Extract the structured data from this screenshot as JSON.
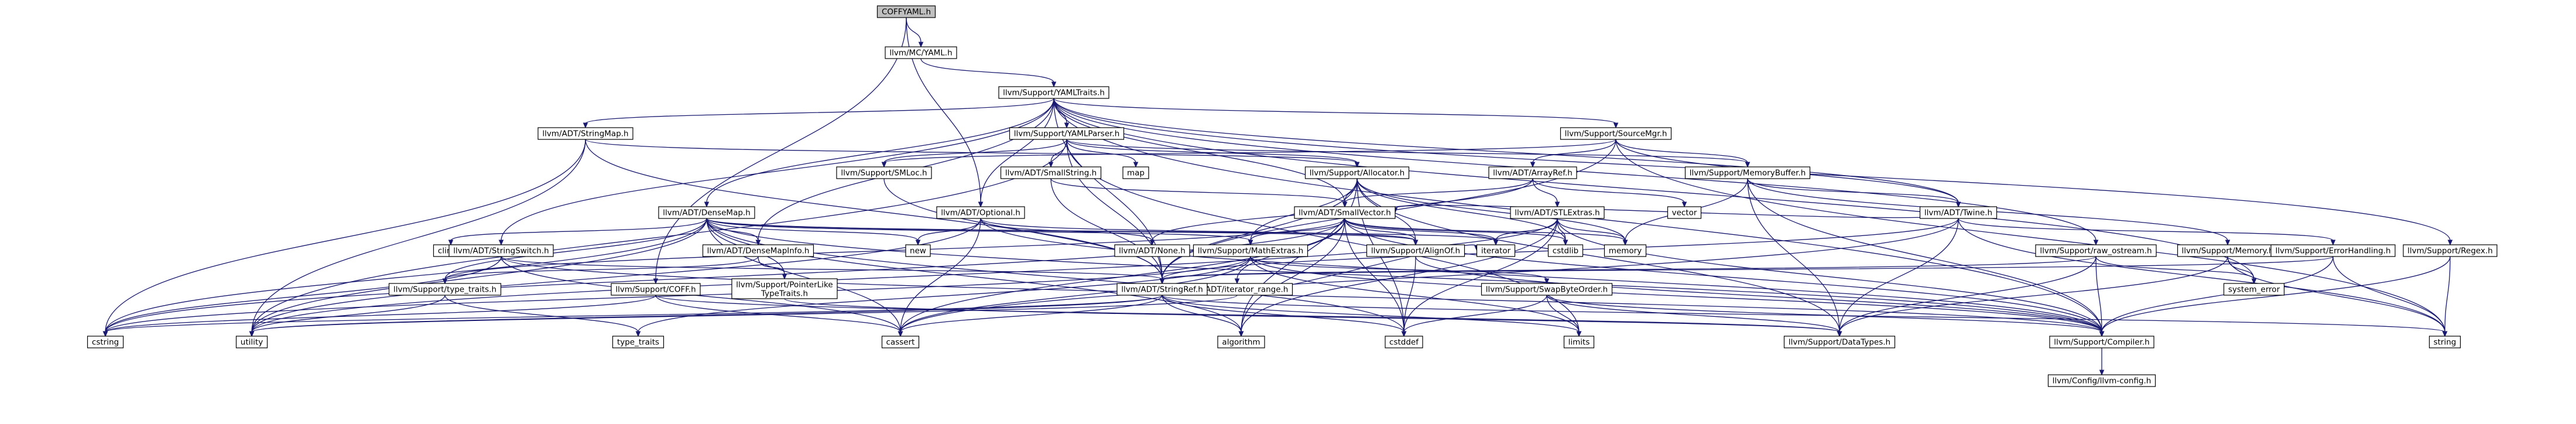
{
  "colors": {
    "root_fill": "#bfbfbf",
    "node_fill": "#ffffff",
    "node_border": "#000000",
    "ext_border": "#bfbfbf",
    "trunc_border": "#ff0000",
    "edge": "#191970"
  },
  "nodes": [
    {
      "id": "coff",
      "label": "COFFYAML.h"
    },
    {
      "id": "mcyaml",
      "label": "llvm/MC/YAML.h"
    },
    {
      "id": "yamltraits",
      "label": "llvm/Support/YAMLTraits.h"
    },
    {
      "id": "stringmap",
      "label": "llvm/ADT/StringMap.h"
    },
    {
      "id": "yamlparser",
      "label": "llvm/Support/YAMLParser.h"
    },
    {
      "id": "sourcemgr",
      "label": "llvm/Support/SourceMgr.h"
    },
    {
      "id": "regex",
      "label": "llvm/Support/Regex.h"
    },
    {
      "id": "smloc",
      "label": "llvm/Support/SMLoc.h"
    },
    {
      "id": "smallstring",
      "label": "llvm/ADT/SmallString.h"
    },
    {
      "id": "map",
      "label": "map",
      "ext": true
    },
    {
      "id": "allocator",
      "label": "llvm/Support/Allocator.h"
    },
    {
      "id": "arrayref",
      "label": "llvm/ADT/ArrayRef.h"
    },
    {
      "id": "membuf",
      "label": "llvm/Support/MemoryBuffer.h",
      "trunc": true
    },
    {
      "id": "densemap",
      "label": "llvm/ADT/DenseMap.h"
    },
    {
      "id": "optional",
      "label": "llvm/ADT/Optional.h"
    },
    {
      "id": "smallvector",
      "label": "llvm/ADT/SmallVector.h"
    },
    {
      "id": "stlextras",
      "label": "llvm/ADT/STLExtras.h",
      "trunc": true
    },
    {
      "id": "vector",
      "label": "vector",
      "ext": true
    },
    {
      "id": "twine",
      "label": "llvm/ADT/Twine.h"
    },
    {
      "id": "climits",
      "label": "climits",
      "ext": true
    },
    {
      "id": "stringswitch",
      "label": "llvm/ADT/StringSwitch.h"
    },
    {
      "id": "densemapinfo",
      "label": "llvm/ADT/DenseMapInfo.h"
    },
    {
      "id": "new",
      "label": "new",
      "ext": true
    },
    {
      "id": "none",
      "label": "llvm/ADT/None.h"
    },
    {
      "id": "mathextras",
      "label": "llvm/Support/MathExtras.h"
    },
    {
      "id": "alignof",
      "label": "llvm/Support/AlignOf.h"
    },
    {
      "id": "iterator",
      "label": "iterator",
      "ext": true
    },
    {
      "id": "cstdlib",
      "label": "cstdlib",
      "ext": true
    },
    {
      "id": "memory",
      "label": "memory",
      "ext": true
    },
    {
      "id": "rawostream",
      "label": "llvm/Support/raw_ostream.h"
    },
    {
      "id": "supmemory",
      "label": "llvm/Support/Memory.h"
    },
    {
      "id": "errhandling",
      "label": "llvm/Support/ErrorHandling.h"
    },
    {
      "id": "typetraits",
      "label": "llvm/Support/type_traits.h"
    },
    {
      "id": "suppcoff",
      "label": "llvm/Support/COFF.h"
    },
    {
      "id": "ptrlike",
      "label": "llvm/Support/PointerLike\nTypeTraits.h"
    },
    {
      "id": "iterrange",
      "label": "llvm/ADT/iterator_range.h"
    },
    {
      "id": "stringref",
      "label": "llvm/ADT/StringRef.h"
    },
    {
      "id": "swapbyte",
      "label": "llvm/Support/SwapByteOrder.h"
    },
    {
      "id": "systemerror",
      "label": "system_error",
      "ext": true
    },
    {
      "id": "cstring",
      "label": "cstring",
      "ext": true
    },
    {
      "id": "utility",
      "label": "utility",
      "ext": true
    },
    {
      "id": "stdtraits",
      "label": "type_traits",
      "ext": true
    },
    {
      "id": "cassert",
      "label": "cassert",
      "ext": true
    },
    {
      "id": "algorithm",
      "label": "algorithm",
      "ext": true
    },
    {
      "id": "cstddef",
      "label": "cstddef",
      "ext": true
    },
    {
      "id": "limits",
      "label": "limits",
      "ext": true
    },
    {
      "id": "datatypes",
      "label": "llvm/Support/DataTypes.h"
    },
    {
      "id": "compiler",
      "label": "llvm/Support/Compiler.h"
    },
    {
      "id": "string",
      "label": "string",
      "ext": true
    },
    {
      "id": "llvmconfig",
      "label": "llvm/Config/llvm-config.h",
      "ext": true
    }
  ],
  "edges": [
    [
      "coff",
      "mcyaml"
    ],
    [
      "coff",
      "optional"
    ],
    [
      "coff",
      "suppcoff"
    ],
    [
      "mcyaml",
      "yamltraits"
    ],
    [
      "yamltraits",
      "stringmap"
    ],
    [
      "yamltraits",
      "yamlparser"
    ],
    [
      "yamltraits",
      "sourcemgr"
    ],
    [
      "yamltraits",
      "regex"
    ],
    [
      "yamltraits",
      "densemap"
    ],
    [
      "yamltraits",
      "optional"
    ],
    [
      "yamltraits",
      "smallvector"
    ],
    [
      "yamltraits",
      "stringswitch"
    ],
    [
      "yamltraits",
      "densemapinfo"
    ],
    [
      "yamltraits",
      "stringref"
    ],
    [
      "yamltraits",
      "twine"
    ],
    [
      "yamltraits",
      "rawostream"
    ],
    [
      "yamltraits",
      "systemerror"
    ],
    [
      "yamltraits",
      "compiler"
    ],
    [
      "stringmap",
      "allocator"
    ],
    [
      "stringmap",
      "stringref"
    ],
    [
      "stringmap",
      "cstring"
    ],
    [
      "stringmap",
      "utility"
    ],
    [
      "yamlparser",
      "smloc"
    ],
    [
      "yamlparser",
      "smallstring"
    ],
    [
      "yamlparser",
      "map"
    ],
    [
      "yamlparser",
      "allocator"
    ],
    [
      "yamlparser",
      "membuf"
    ],
    [
      "yamlparser",
      "stringref"
    ],
    [
      "yamlparser",
      "utility"
    ],
    [
      "yamlparser",
      "limits"
    ],
    [
      "sourcemgr",
      "smloc"
    ],
    [
      "sourcemgr",
      "arrayref"
    ],
    [
      "sourcemgr",
      "membuf"
    ],
    [
      "sourcemgr",
      "twine"
    ],
    [
      "sourcemgr",
      "stringref"
    ],
    [
      "sourcemgr",
      "string"
    ],
    [
      "regex",
      "compiler"
    ],
    [
      "regex",
      "string"
    ],
    [
      "smloc",
      "stringref"
    ],
    [
      "smallstring",
      "smallvector"
    ],
    [
      "smallstring",
      "stringref"
    ],
    [
      "allocator",
      "smallvector"
    ],
    [
      "allocator",
      "stringref"
    ],
    [
      "allocator",
      "alignof"
    ],
    [
      "allocator",
      "mathextras"
    ],
    [
      "allocator",
      "datatypes"
    ],
    [
      "allocator",
      "memory"
    ],
    [
      "allocator",
      "cstddef"
    ],
    [
      "allocator",
      "cstdlib"
    ],
    [
      "allocator",
      "algorithm"
    ],
    [
      "arrayref",
      "smallvector"
    ],
    [
      "arrayref",
      "stlextras"
    ],
    [
      "arrayref",
      "none"
    ],
    [
      "arrayref",
      "vector"
    ],
    [
      "membuf",
      "twine"
    ],
    [
      "membuf",
      "datatypes"
    ],
    [
      "membuf",
      "compiler"
    ],
    [
      "membuf",
      "memory"
    ],
    [
      "membuf",
      "supmemory"
    ],
    [
      "densemap",
      "densemapinfo"
    ],
    [
      "densemap",
      "mathextras"
    ],
    [
      "densemap",
      "alignof"
    ],
    [
      "densemap",
      "compiler"
    ],
    [
      "densemap",
      "ptrlike"
    ],
    [
      "densemap",
      "typetraits"
    ],
    [
      "densemap",
      "algorithm"
    ],
    [
      "densemap",
      "cassert"
    ],
    [
      "densemap",
      "climits"
    ],
    [
      "densemap",
      "cstddef"
    ],
    [
      "densemap",
      "cstring"
    ],
    [
      "densemap",
      "iterator"
    ],
    [
      "densemap",
      "new"
    ],
    [
      "densemap",
      "utility"
    ],
    [
      "optional",
      "none"
    ],
    [
      "optional",
      "alignof"
    ],
    [
      "optional",
      "compiler"
    ],
    [
      "optional",
      "cassert"
    ],
    [
      "optional",
      "new"
    ],
    [
      "optional",
      "utility"
    ],
    [
      "smallvector",
      "iterrange"
    ],
    [
      "smallvector",
      "alignof"
    ],
    [
      "smallvector",
      "compiler"
    ],
    [
      "smallvector",
      "mathextras"
    ],
    [
      "smallvector",
      "typetraits"
    ],
    [
      "smallvector",
      "algorithm"
    ],
    [
      "smallvector",
      "cassert"
    ],
    [
      "smallvector",
      "cstddef"
    ],
    [
      "smallvector",
      "cstdlib"
    ],
    [
      "smallvector",
      "cstring"
    ],
    [
      "smallvector",
      "iterator"
    ],
    [
      "smallvector",
      "memory"
    ],
    [
      "stlextras",
      "compiler"
    ],
    [
      "stlextras",
      "cstddef"
    ],
    [
      "stlextras",
      "cstdlib"
    ],
    [
      "stlextras",
      "iterator"
    ],
    [
      "stlextras",
      "memory"
    ],
    [
      "stlextras",
      "algorithm"
    ],
    [
      "stlextras",
      "utility"
    ],
    [
      "twine",
      "smallvector"
    ],
    [
      "twine",
      "stringref"
    ],
    [
      "twine",
      "datatypes"
    ],
    [
      "twine",
      "errhandling"
    ],
    [
      "twine",
      "cassert"
    ],
    [
      "twine",
      "string"
    ],
    [
      "stringswitch",
      "stringref"
    ],
    [
      "stringswitch",
      "compiler"
    ],
    [
      "stringswitch",
      "cassert"
    ],
    [
      "stringswitch",
      "cstring"
    ],
    [
      "densemapinfo",
      "ptrlike"
    ],
    [
      "densemapinfo",
      "typetraits"
    ],
    [
      "mathextras",
      "compiler"
    ],
    [
      "mathextras",
      "swapbyte"
    ],
    [
      "mathextras",
      "cassert"
    ],
    [
      "mathextras",
      "cstring"
    ],
    [
      "mathextras",
      "limits"
    ],
    [
      "mathextras",
      "stdtraits"
    ],
    [
      "alignof",
      "compiler"
    ],
    [
      "alignof",
      "cstddef"
    ],
    [
      "rawostream",
      "stringref"
    ],
    [
      "rawostream",
      "compiler"
    ],
    [
      "rawostream",
      "datatypes"
    ],
    [
      "rawostream",
      "systemerror"
    ],
    [
      "supmemory",
      "datatypes"
    ],
    [
      "supmemory",
      "string"
    ],
    [
      "supmemory",
      "systemerror"
    ],
    [
      "errhandling",
      "stringref"
    ],
    [
      "errhandling",
      "compiler"
    ],
    [
      "errhandling",
      "string"
    ],
    [
      "typetraits",
      "utility"
    ],
    [
      "typetraits",
      "stdtraits"
    ],
    [
      "suppcoff",
      "datatypes"
    ],
    [
      "suppcoff",
      "cassert"
    ],
    [
      "suppcoff",
      "cstring"
    ],
    [
      "ptrlike",
      "datatypes"
    ],
    [
      "iterrange",
      "utility"
    ],
    [
      "iterrange",
      "iterator"
    ],
    [
      "stringref",
      "cstring"
    ],
    [
      "stringref",
      "utility"
    ],
    [
      "stringref",
      "algorithm"
    ],
    [
      "stringref",
      "cassert"
    ],
    [
      "stringref",
      "cstddef"
    ],
    [
      "stringref",
      "limits"
    ],
    [
      "stringref",
      "string"
    ],
    [
      "swapbyte",
      "compiler"
    ],
    [
      "swapbyte",
      "datatypes"
    ],
    [
      "swapbyte",
      "cstddef"
    ],
    [
      "swapbyte",
      "limits"
    ],
    [
      "compiler",
      "llvmconfig"
    ]
  ]
}
